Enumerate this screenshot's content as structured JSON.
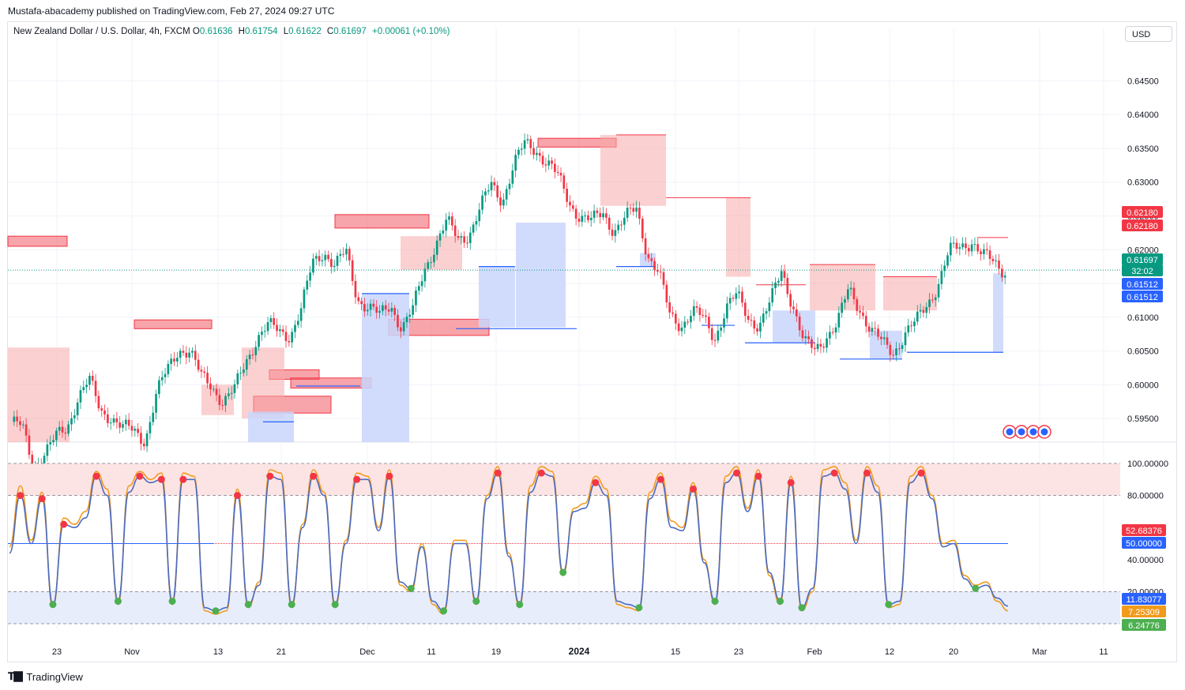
{
  "header": {
    "published": "Mustafa-abacademy published on TradingView.com, Feb 27, 2024 09:27 UTC"
  },
  "legend": {
    "symbol": "New Zealand Dollar / U.S. Dollar, 4h, FXCM",
    "o_label": "O",
    "o_value": "0.61636",
    "h_label": "H",
    "h_value": "0.61754",
    "l_label": "L",
    "l_value": "0.61622",
    "c_label": "C",
    "c_value": "0.61697",
    "change": "+0.00061 (+0.10%)"
  },
  "currency_button": "USD",
  "footer": {
    "brand": "TradingView"
  },
  "colors": {
    "up": "#089981",
    "down": "#f23645",
    "blue": "#2962ff",
    "supply_fill": "#f7a9a9",
    "demand_fill": "#c9d6fb",
    "stoch_k": "#4b6bbf",
    "stoch_d": "#f29a1b"
  },
  "chart_data": [
    {
      "type": "candlestick",
      "symbol": "NZDUSD",
      "timeframe": "4h",
      "ylim": [
        0.5915,
        0.6502
      ],
      "y_ticks": [
        "0.64500",
        "0.64000",
        "0.63500",
        "0.63000",
        "0.62500",
        "0.62000",
        "0.61500",
        "0.61000",
        "0.60500",
        "0.60000",
        "0.59500"
      ],
      "x_ticks": [
        "23",
        "Nov",
        "13",
        "21",
        "Dec",
        "11",
        "19",
        "2024",
        "15",
        "23",
        "Feb",
        "12",
        "20",
        "Mar",
        "11"
      ],
      "price_path": [
        [
          0.5945,
          0.5935
        ],
        [
          0.588,
          0.59
        ],
        [
          0.592,
          0.5935
        ],
        [
          0.5985,
          0.6005
        ],
        [
          0.596,
          0.5955
        ],
        [
          0.5935,
          0.593
        ],
        [
          0.592,
          0.5985
        ],
        [
          0.602,
          0.6055
        ],
        [
          0.605,
          0.601
        ],
        [
          0.6,
          0.5975
        ],
        [
          0.599,
          0.6035
        ],
        [
          0.607,
          0.6085
        ],
        [
          0.608,
          0.6075
        ],
        [
          0.611,
          0.618
        ],
        [
          0.62,
          0.6175
        ],
        [
          0.6195,
          0.613
        ],
        [
          0.6115,
          0.61
        ],
        [
          0.612,
          0.6085
        ],
        [
          0.611,
          0.617
        ],
        [
          0.621,
          0.624
        ],
        [
          0.6215,
          0.6225
        ],
        [
          0.626,
          0.6295
        ],
        [
          0.6275,
          0.6325
        ],
        [
          0.6355,
          0.635
        ],
        [
          0.633,
          0.6305
        ],
        [
          0.627,
          0.625
        ],
        [
          0.624,
          0.6255
        ],
        [
          0.623,
          0.6245
        ],
        [
          0.626,
          0.6195
        ],
        [
          0.6165,
          0.61
        ],
        [
          0.609,
          0.611
        ],
        [
          0.6095,
          0.607
        ],
        [
          0.6115,
          0.613
        ],
        [
          0.61,
          0.609
        ],
        [
          0.612,
          0.617
        ],
        [
          0.612,
          0.606
        ],
        [
          0.605,
          0.6075
        ],
        [
          0.609,
          0.614
        ],
        [
          0.6115,
          0.608
        ],
        [
          0.606,
          0.605
        ],
        [
          0.6075,
          0.609
        ],
        [
          0.612,
          0.615
        ],
        [
          0.6195,
          0.6205
        ],
        [
          0.6215,
          0.619
        ],
        [
          0.618,
          0.617
        ]
      ],
      "last_price": 0.61697,
      "countdown": "32:02",
      "price_labels": [
        {
          "text": "0.62180",
          "color": "#f23645"
        },
        {
          "text": "0.62180",
          "color": "#f23645"
        },
        {
          "text": "0.61697",
          "color": "#089981"
        },
        {
          "text": "32:02",
          "color": "#089981"
        },
        {
          "text": "0.61512",
          "color": "#2962ff"
        },
        {
          "text": "0.61512",
          "color": "#2962ff"
        }
      ],
      "supply_zones": [
        [
          0.6205,
          0.622
        ],
        [
          0.6083,
          0.6096
        ],
        [
          0.6008,
          0.6022
        ],
        [
          0.5995,
          0.601
        ],
        [
          0.6232,
          0.6252
        ],
        [
          0.6352,
          0.6365
        ],
        [
          0.6073,
          0.6097
        ],
        [
          0.5958,
          0.5983
        ]
      ],
      "demand_zones": [
        [
          0.6087,
          0.6135
        ],
        [
          0.6174,
          0.618
        ],
        [
          0.6083,
          0.611
        ],
        [
          0.6062,
          0.608
        ],
        [
          0.6038,
          0.606
        ],
        [
          0.6048,
          0.6148
        ]
      ]
    },
    {
      "type": "line",
      "name": "Stochastic RSI",
      "ylim": [
        0,
        100
      ],
      "y_ticks": [
        "100.00000",
        "80.00000",
        "40.00000",
        "20.00000"
      ],
      "bands": [
        20,
        50,
        80,
        100
      ],
      "series": [
        {
          "color": "#f29a1b",
          "values": [
            48,
            86,
            52,
            82,
            10,
            66,
            62,
            70,
            95,
            84,
            12,
            86,
            95,
            90,
            94,
            12,
            94,
            92,
            8,
            6,
            8,
            84,
            10,
            26,
            96,
            94,
            10,
            62,
            96,
            82,
            10,
            52,
            94,
            92,
            60,
            96,
            24,
            20,
            50,
            12,
            6,
            52,
            52,
            12,
            80,
            98,
            44,
            10,
            86,
            98,
            95,
            30,
            72,
            75,
            92,
            84,
            12,
            10,
            8,
            82,
            94,
            64,
            60,
            88,
            40,
            12,
            92,
            98,
            72,
            96,
            30,
            12,
            92,
            8,
            20,
            96,
            98,
            88,
            52,
            98,
            86,
            10,
            12,
            92,
            98,
            80,
            50,
            52,
            30,
            24,
            26,
            14,
            8
          ]
        },
        {
          "color": "#4b6bbf",
          "values": [
            44,
            80,
            50,
            78,
            12,
            62,
            60,
            66,
            92,
            80,
            14,
            82,
            92,
            88,
            90,
            14,
            90,
            90,
            10,
            8,
            10,
            80,
            12,
            24,
            92,
            90,
            12,
            60,
            92,
            80,
            12,
            50,
            90,
            90,
            58,
            92,
            26,
            22,
            48,
            14,
            8,
            50,
            50,
            14,
            78,
            94,
            42,
            12,
            82,
            94,
            92,
            32,
            70,
            72,
            88,
            80,
            14,
            12,
            10,
            78,
            90,
            60,
            58,
            84,
            38,
            14,
            88,
            94,
            70,
            92,
            32,
            14,
            88,
            10,
            22,
            92,
            94,
            84,
            50,
            94,
            82,
            12,
            14,
            88,
            94,
            78,
            48,
            50,
            28,
            22,
            24,
            16,
            11
          ]
        }
      ],
      "value_labels": [
        {
          "text": "52.68376",
          "color": "#f23645"
        },
        {
          "text": "50.00000",
          "color": "#2962ff"
        },
        {
          "text": "11.83077",
          "color": "#2962ff"
        },
        {
          "text": "7.25309",
          "color": "#f29a1b"
        },
        {
          "text": "6.24776",
          "color": "#4caf50"
        }
      ]
    }
  ]
}
